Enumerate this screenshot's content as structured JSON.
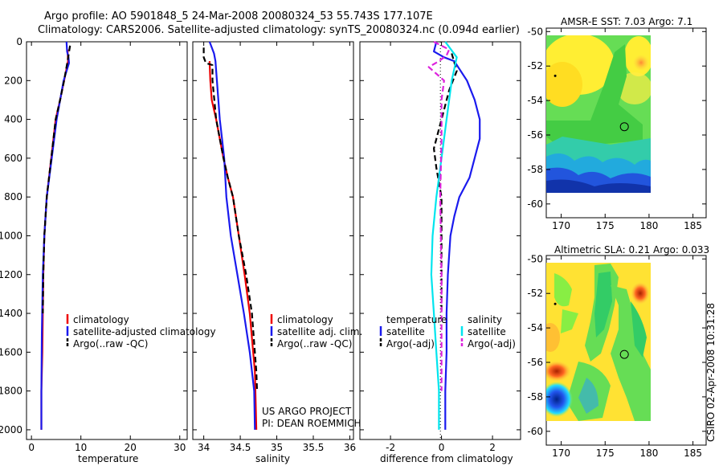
{
  "header": {
    "line1": "Argo profile: AO 5901848_5 24-Mar-2008 20080324_53 55.743S 177.107E",
    "line2": "Climatology: CARS2006. Satellite-adjusted climatology: synTS_20080324.nc (0.094d earlier)"
  },
  "side_text": "CSIRO 02-Apr-2008 10:31:28",
  "colors": {
    "red": "#ee0000",
    "blue": "#1a1aee",
    "black": "#000000",
    "cyan": "#00e5ee",
    "magenta": "#dd22dd"
  },
  "chart_data": [
    {
      "type": "line",
      "id": "temperature",
      "xlabel": "temperature",
      "ylabel": "",
      "xlim": [
        -1,
        31.5
      ],
      "ylim": [
        2050,
        0
      ],
      "xticks": [
        0,
        10,
        20,
        30
      ],
      "yticks": [
        0,
        200,
        400,
        600,
        800,
        1000,
        1200,
        1400,
        1600,
        1800,
        2000
      ],
      "y_reversed": true,
      "legend": {
        "placement": "lower-left",
        "entries": [
          "climatology",
          "satellite-adjusted climatology",
          "Argo(..raw -QC)"
        ]
      },
      "series": [
        {
          "name": "climatology",
          "color": "red",
          "dash": "solid",
          "x": [
            7.3,
            7.4,
            6.6,
            5.8,
            4.9,
            4.0,
            3.1,
            2.6,
            2.4,
            2.3,
            2.2,
            2.0,
            2.0
          ],
          "y": [
            40,
            100,
            200,
            300,
            400,
            600,
            800,
            1000,
            1200,
            1400,
            1600,
            1800,
            2000
          ]
        },
        {
          "name": "satellite-adjusted climatology",
          "color": "blue",
          "dash": "solid",
          "x": [
            7.1,
            7.2,
            7.5,
            7.6,
            6.5,
            5.1,
            4.1,
            3.1,
            2.6,
            2.3,
            2.1,
            2.0,
            2.0
          ],
          "y": [
            0,
            50,
            80,
            110,
            200,
            400,
            600,
            800,
            1000,
            1200,
            1500,
            1800,
            2000
          ]
        },
        {
          "name": "Argo(..raw -QC)",
          "color": "black",
          "dash": "dash",
          "x": [
            7.8,
            7.3,
            6.6,
            5.8,
            4.9,
            4.0,
            3.1,
            2.6,
            2.4,
            2.3
          ],
          "y": [
            20,
            100,
            200,
            300,
            400,
            600,
            800,
            1000,
            1200,
            1400
          ]
        }
      ]
    },
    {
      "type": "line",
      "id": "salinity",
      "xlabel": "salinity",
      "ylabel": "",
      "xlim": [
        33.85,
        36.05
      ],
      "ylim": [
        2050,
        0
      ],
      "xticks": [
        34,
        34.5,
        35,
        35.5,
        36
      ],
      "y_reversed": true,
      "legend": {
        "placement": "lower-center",
        "entries": [
          "climatology",
          "satellite adj. clim.",
          "Argo(..raw -QC)"
        ]
      },
      "annotation": [
        "US ARGO PROJECT",
        "PI: DEAN ROEMMICH"
      ],
      "series": [
        {
          "name": "climatology",
          "color": "red",
          "dash": "solid",
          "x": [
            34.08,
            34.09,
            34.11,
            34.17,
            34.22,
            34.27,
            34.33,
            34.4,
            34.48,
            34.56,
            34.63,
            34.7,
            34.72
          ],
          "y": [
            100,
            200,
            300,
            400,
            500,
            600,
            700,
            800,
            1000,
            1200,
            1400,
            1700,
            2000
          ]
        },
        {
          "name": "satellite adj. clim.",
          "color": "blue",
          "dash": "solid",
          "x": [
            34.08,
            34.14,
            34.16,
            34.18,
            34.2,
            34.22,
            34.25,
            34.28,
            34.31,
            34.37,
            34.46,
            34.55,
            34.63,
            34.69,
            34.7
          ],
          "y": [
            0,
            60,
            100,
            200,
            300,
            400,
            500,
            600,
            800,
            1000,
            1200,
            1400,
            1600,
            1800,
            2000
          ]
        },
        {
          "name": "Argo(..raw -QC)",
          "color": "black",
          "dash": "dash",
          "x": [
            34.0,
            34.0,
            34.03,
            34.12,
            34.12,
            34.17,
            34.22,
            34.27,
            34.33,
            34.4,
            34.48,
            34.58,
            34.66,
            34.72,
            34.73
          ],
          "y": [
            30,
            80,
            110,
            120,
            200,
            400,
            500,
            600,
            700,
            800,
            1000,
            1200,
            1400,
            1700,
            1800
          ]
        }
      ]
    },
    {
      "type": "line",
      "id": "difference",
      "xlabel": "difference from climatology",
      "ylabel": "",
      "xlim": [
        -3.2,
        3.1
      ],
      "ylim": [
        2050,
        0
      ],
      "xticks": [
        -2,
        0,
        2
      ],
      "y_reversed": true,
      "legend": {
        "placement": "lower-center",
        "groups": [
          {
            "title": "temperature",
            "entries": [
              "satellite",
              "Argo(-adj)"
            ]
          },
          {
            "title": "salinity",
            "entries": [
              "satellite",
              "Argo(-adj)"
            ]
          }
        ]
      },
      "series": [
        {
          "name": "temperature satellite",
          "color": "blue",
          "dash": "solid",
          "x": [
            -0.2,
            -0.3,
            0.1,
            0.5,
            1.0,
            1.3,
            1.5,
            1.5,
            1.1,
            0.7,
            0.5,
            0.35,
            0.25,
            0.2,
            0.2,
            0.15,
            0.15
          ],
          "y": [
            0,
            50,
            80,
            100,
            200,
            300,
            400,
            500,
            700,
            800,
            900,
            1000,
            1200,
            1400,
            1600,
            1800,
            2000
          ]
        },
        {
          "name": "temperature Argo(-adj)",
          "color": "black",
          "dash": "dash",
          "x": [
            0.4,
            0.6,
            0.3,
            0.1,
            -0.1,
            -0.3,
            -0.2,
            0.0,
            0.0,
            0.0
          ],
          "y": [
            60,
            150,
            250,
            350,
            450,
            550,
            650,
            800,
            1000,
            1400
          ]
        },
        {
          "name": "salinity satellite",
          "color": "cyan",
          "dash": "solid",
          "x": [
            0.15,
            0.6,
            0.4,
            0.2,
            0.0,
            -0.2,
            -0.35,
            -0.4,
            -0.3,
            -0.2,
            -0.1,
            -0.1
          ],
          "y": [
            0,
            80,
            200,
            400,
            600,
            800,
            1000,
            1200,
            1400,
            1600,
            1800,
            2000
          ]
        },
        {
          "name": "salinity Argo(-adj)",
          "color": "magenta",
          "dash": "dash",
          "x": [
            -0.3,
            0.3,
            0.2,
            -0.1,
            -0.5,
            0.1,
            0.0,
            0.0,
            -0.05,
            0.0,
            0.0,
            0.0
          ],
          "y": [
            0,
            40,
            70,
            100,
            130,
            200,
            300,
            500,
            800,
            1200,
            1500,
            1800
          ]
        }
      ]
    },
    {
      "type": "heatmap",
      "id": "amsre-sst",
      "title": "AMSR-E SST: 7.03 Argo: 7.1",
      "xlim": [
        168.3,
        186.5
      ],
      "ylim": [
        -60.8,
        -49.8
      ],
      "xticks": [
        170,
        175,
        180,
        185
      ],
      "yticks": [
        -50,
        -52,
        -54,
        -56,
        -58,
        -60
      ],
      "image_extent": {
        "lon": [
          168.3,
          180
        ],
        "lat": [
          -60,
          -49.8
        ]
      },
      "markers": [
        {
          "lon": 177.1,
          "lat": -55.74,
          "kind": "circle"
        },
        {
          "lon": 169.2,
          "lat": -52.6,
          "kind": "dot"
        }
      ]
    },
    {
      "type": "heatmap",
      "id": "altimetric-sla",
      "title": "Altimetric SLA: 0.21 Argo: 0.033",
      "xlim": [
        168.3,
        186.5
      ],
      "ylim": [
        -60.8,
        -49.8
      ],
      "xticks": [
        170,
        175,
        180,
        185
      ],
      "yticks": [
        -50,
        -52,
        -54,
        -56,
        -58,
        -60
      ],
      "image_extent": {
        "lon": [
          168.3,
          180
        ],
        "lat": [
          -60,
          -49.8
        ]
      },
      "markers": [
        {
          "lon": 177.1,
          "lat": -55.74,
          "kind": "circle"
        },
        {
          "lon": 169.2,
          "lat": -52.6,
          "kind": "dot"
        }
      ]
    }
  ]
}
